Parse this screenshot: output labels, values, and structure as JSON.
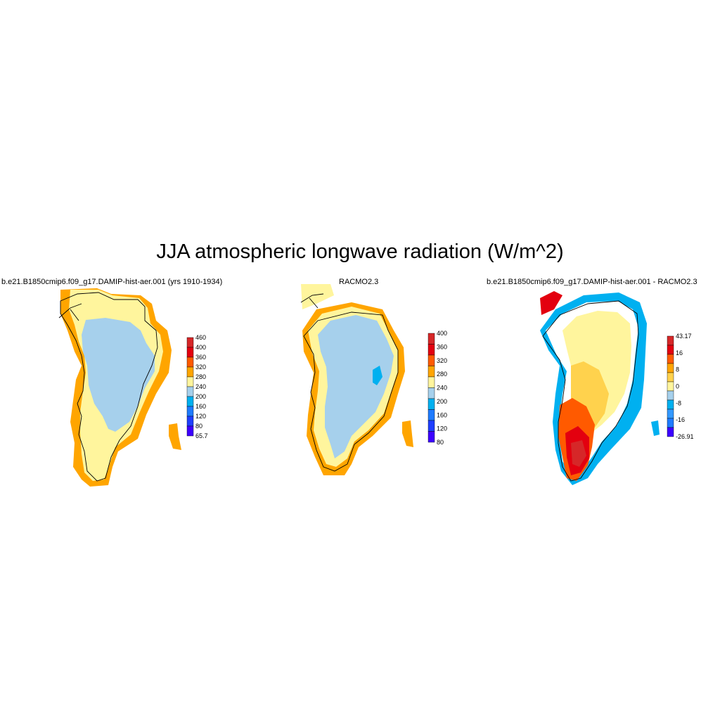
{
  "figure": {
    "title": "JJA atmospheric longwave radiation (W/m^2)"
  },
  "panels": [
    {
      "title": "b.e21.B1850cmip6.f09_g17.DAMIP-hist-aer.001 (yrs 1910-1934)",
      "colorbar": {
        "labels": [
          "460",
          "400",
          "360",
          "320",
          "280",
          "240",
          "200",
          "160",
          "120",
          "80",
          "65.7"
        ],
        "colors": [
          "#d62728",
          "#e3000f",
          "#ff5a00",
          "#ffa500",
          "#fff59d",
          "#a6d0ec",
          "#00b0f0",
          "#1e7bff",
          "#1f3fff",
          "#3d00ff"
        ]
      }
    },
    {
      "title": "RACMO2.3",
      "colorbar": {
        "labels": [
          "400",
          "360",
          "320",
          "280",
          "240",
          "200",
          "160",
          "120",
          "80"
        ],
        "colors": [
          "#d62728",
          "#e3000f",
          "#ff5a00",
          "#ffa500",
          "#fff59d",
          "#a6d0ec",
          "#00b0f0",
          "#1e7bff",
          "#1f3fff",
          "#3d00ff"
        ]
      }
    },
    {
      "title": "b.e21.B1850cmip6.f09_g17.DAMIP-hist-aer.001 - RACMO2.3",
      "colorbar": {
        "labels": [
          "43.17",
          "16",
          "8",
          "0",
          "-8",
          "-16",
          "-26.91"
        ],
        "colors": [
          "#d62728",
          "#e3000f",
          "#ff5a00",
          "#ffa500",
          "#ffd24d",
          "#fff59d",
          "#a6d0ec",
          "#00b0f0",
          "#3399ff",
          "#1e7bff",
          "#3d00ff"
        ]
      }
    }
  ]
}
